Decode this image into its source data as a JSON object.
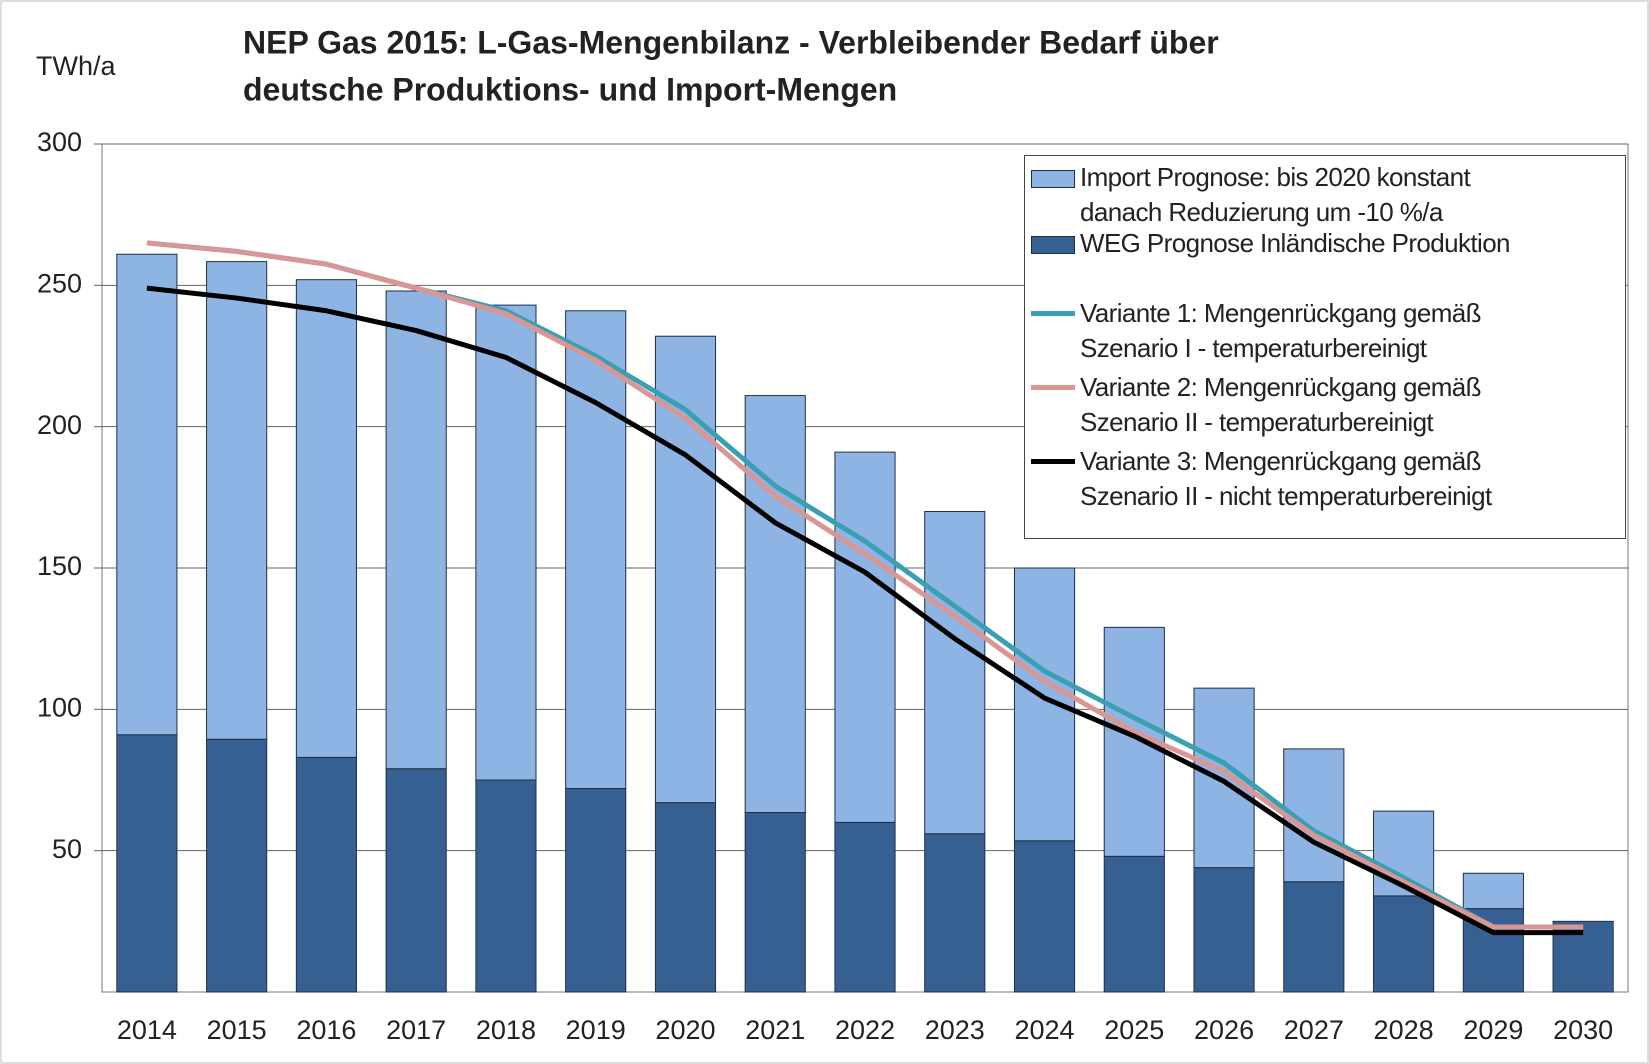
{
  "chart_data": {
    "type": "bar",
    "stacked": true,
    "title": "NEP Gas 2015: L-Gas-Mengenbilanz  - Verbleibender  Bedarf über",
    "subtitle": "deutsche Produktions-  und Import-Mengen",
    "y_label": "TWh/a",
    "categories": [
      "2014",
      "2015",
      "2016",
      "2017",
      "2018",
      "2019",
      "2020",
      "2021",
      "2022",
      "2023",
      "2024",
      "2025",
      "2026",
      "2027",
      "2028",
      "2029",
      "2030"
    ],
    "series": [
      {
        "name": "WEG Prognose Inländische Produktion",
        "color": "#376092",
        "kind": "bar",
        "values": [
          91,
          89.4,
          83,
          79,
          75,
          72,
          67,
          63.5,
          60,
          56,
          53.5,
          48,
          44,
          39,
          34,
          29.5,
          25
        ]
      },
      {
        "name": "Import Prognose: bis 2020 konstant\ndanach Reduzierung um -10 %/a",
        "color": "#8eb4e3",
        "kind": "bar",
        "values": [
          170,
          169,
          169,
          169,
          168,
          169,
          165,
          147.5,
          131,
          114,
          96.5,
          81,
          63.5,
          47,
          30,
          12.5,
          0
        ]
      },
      {
        "name": "Variante 1: Mengenrückgang gemäß\nSzenario I - temperaturbereinigt",
        "color": "#3a9fb2",
        "kind": "line",
        "values": [
          265,
          262,
          257.5,
          249,
          241,
          225,
          206,
          179,
          159.5,
          136.5,
          113.5,
          97,
          81,
          57,
          40.5,
          23,
          23
        ]
      },
      {
        "name": "Variante 2: Mengenrückgang gemäß\nSzenario II - temperaturbereinigt",
        "color": "#d99694",
        "kind": "line",
        "values": [
          265,
          262,
          257.5,
          249,
          240,
          223.5,
          203,
          175.5,
          155,
          133,
          110,
          92,
          78,
          55.5,
          39,
          23,
          23
        ]
      },
      {
        "name": "Variante 3: Mengenrückgang gemäß\nSzenario II - nicht temperaturbereinigt",
        "color": "#000000",
        "kind": "line",
        "values": [
          249,
          245.5,
          241,
          234,
          224.5,
          208.5,
          190,
          166,
          148.5,
          125,
          104,
          90.5,
          74.5,
          53,
          37.5,
          21,
          21
        ]
      }
    ],
    "ylim": [
      0,
      300
    ],
    "yticks": [
      50,
      100,
      150,
      200,
      250,
      300
    ],
    "grid": true,
    "legend": "top-right"
  }
}
